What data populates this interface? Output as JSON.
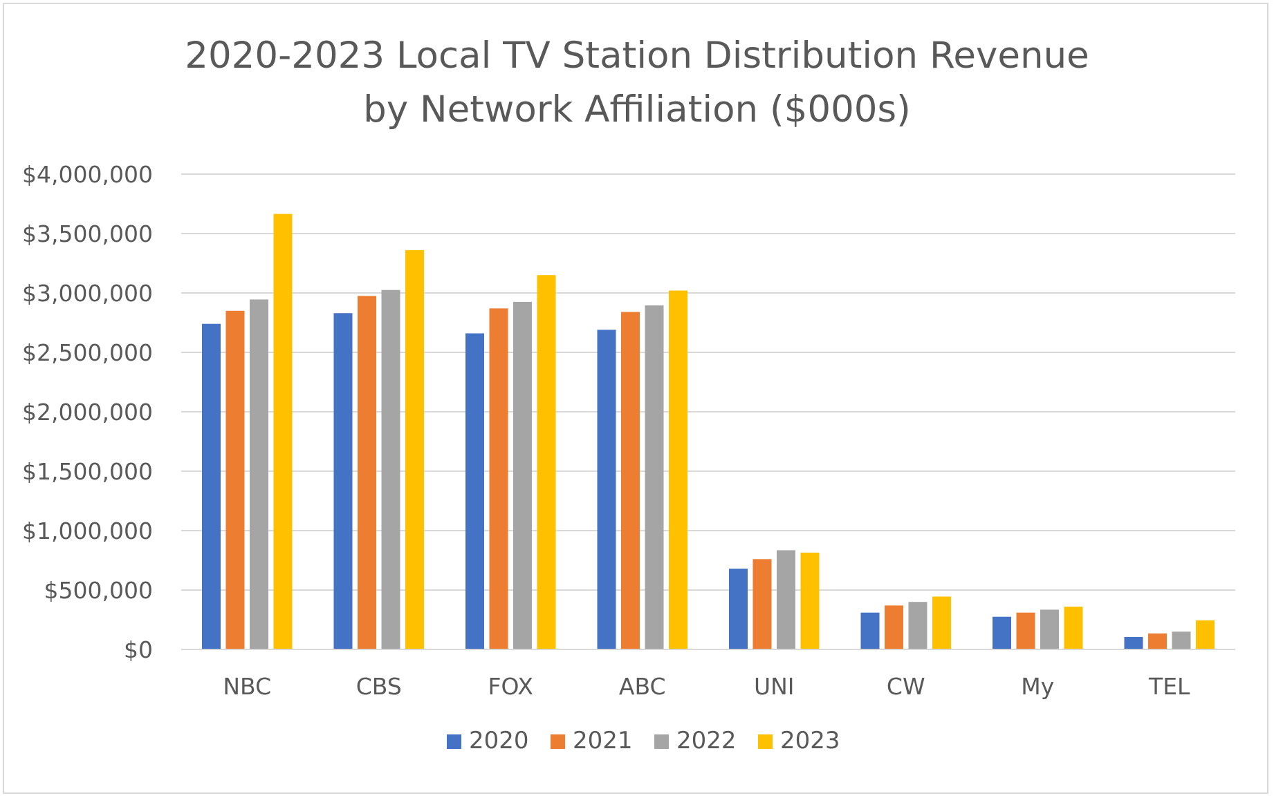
{
  "chart_data": {
    "type": "bar",
    "title_lines": [
      "2020-2023 Local TV Station Distribution Revenue",
      "by Network Affiliation ($000s)"
    ],
    "categories": [
      "NBC",
      "CBS",
      "FOX",
      "ABC",
      "UNI",
      "CW",
      "My",
      "TEL"
    ],
    "series": [
      {
        "name": "2020",
        "color": "#4472c4",
        "values": [
          2740000,
          2830000,
          2660000,
          2690000,
          680000,
          310000,
          275000,
          105000
        ]
      },
      {
        "name": "2021",
        "color": "#ed7d31",
        "values": [
          2850000,
          2975000,
          2870000,
          2840000,
          760000,
          370000,
          310000,
          135000
        ]
      },
      {
        "name": "2022",
        "color": "#a5a5a5",
        "values": [
          2945000,
          3025000,
          2925000,
          2895000,
          835000,
          400000,
          335000,
          150000
        ]
      },
      {
        "name": "2023",
        "color": "#ffc000",
        "values": [
          3665000,
          3360000,
          3150000,
          3020000,
          815000,
          445000,
          360000,
          245000
        ]
      }
    ],
    "y_ticks": [
      0,
      500000,
      1000000,
      1500000,
      2000000,
      2500000,
      3000000,
      3500000,
      4000000
    ],
    "y_tick_labels": [
      "$0",
      "$500,000",
      "$1,000,000",
      "$1,500,000",
      "$2,000,000",
      "$2,500,000",
      "$3,000,000",
      "$3,500,000",
      "$4,000,000"
    ],
    "ylim": [
      0,
      4000000
    ],
    "grid": true,
    "legend_position": "bottom",
    "colors": {
      "gridline": "#d9d9d9",
      "text": "#595959",
      "border": "#d9d9d9"
    }
  }
}
